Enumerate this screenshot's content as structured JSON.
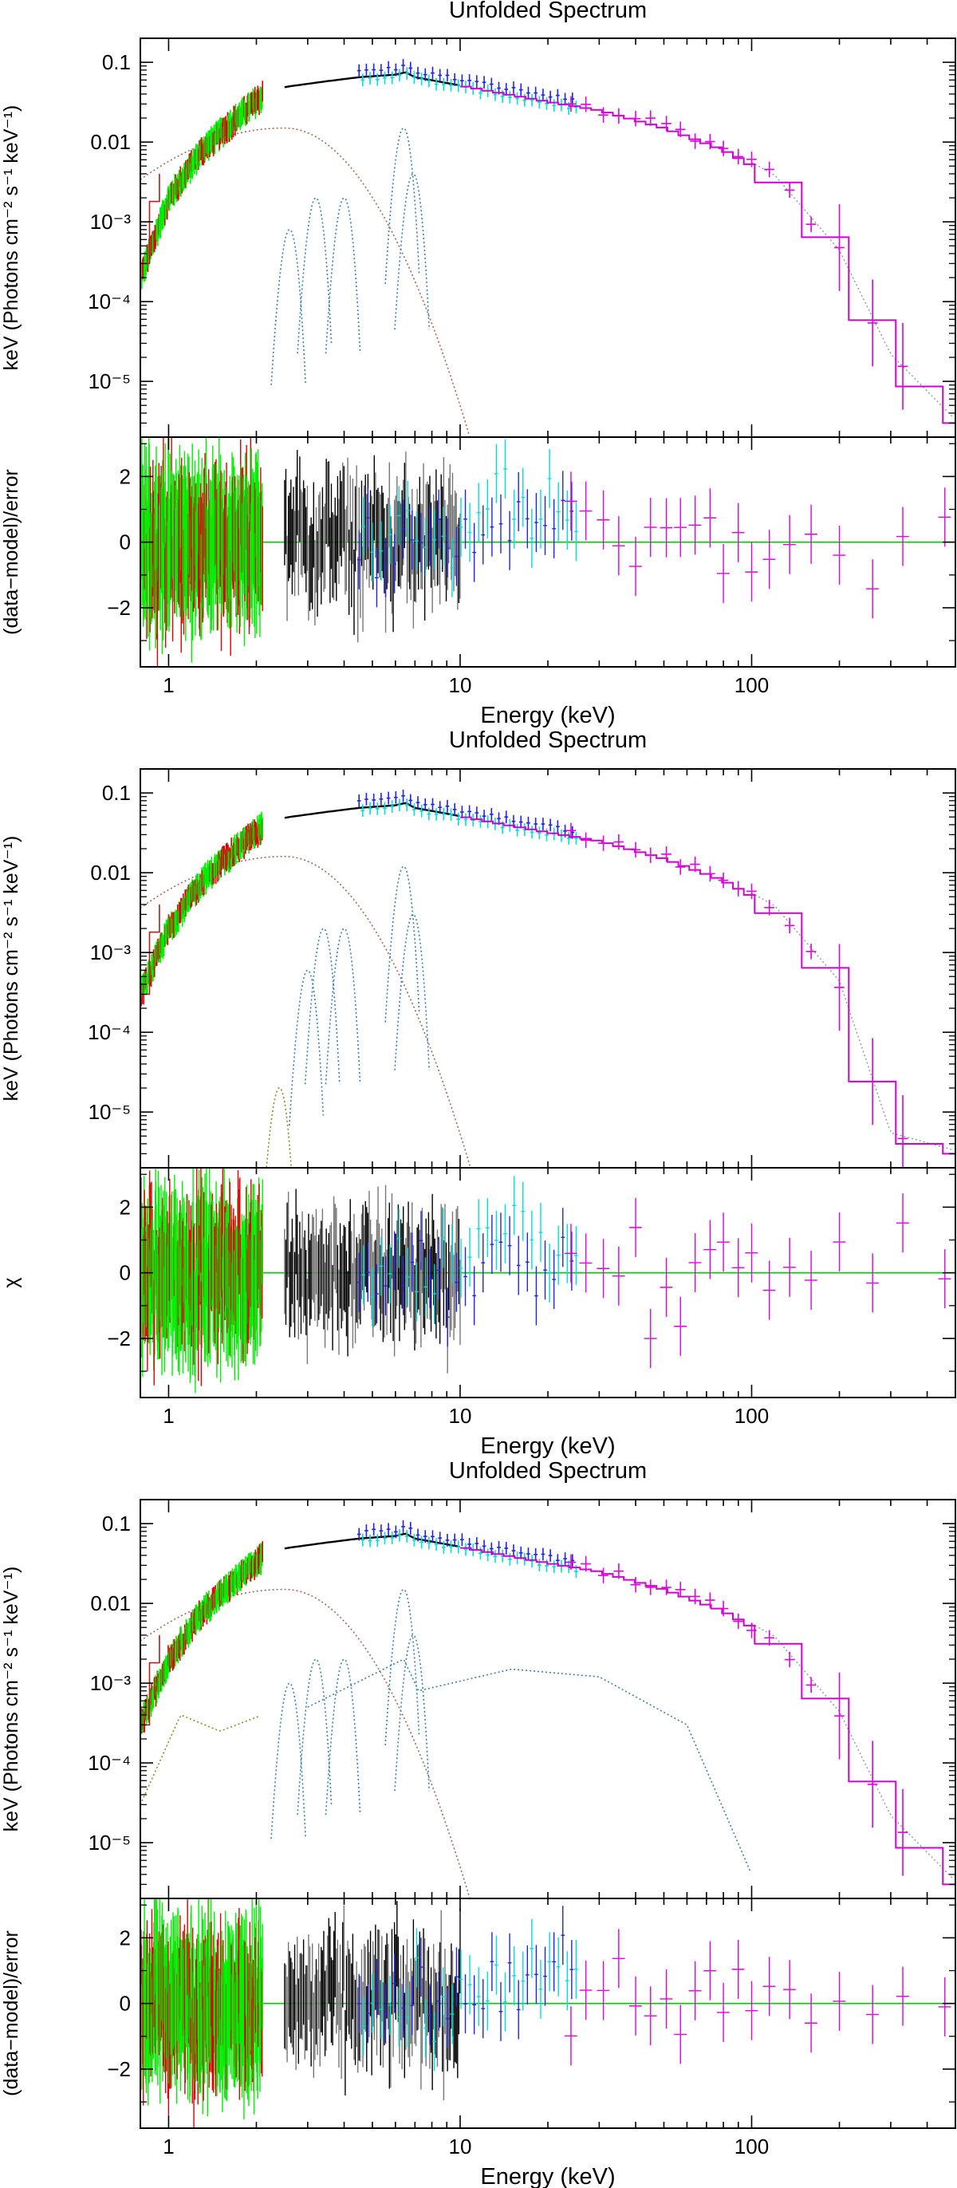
{
  "chart_data": [
    {
      "type": "line",
      "title": "Unfolded Spectrum",
      "xlabel": "Energy (keV)",
      "ylabel_top": "keV (Photons cm⁻² s⁻¹ keV⁻¹)",
      "ylabel_bottom": "(data−model)/error",
      "xscale": "log",
      "xlim": [
        0.8,
        500
      ],
      "top_ylim": [
        2e-06,
        0.2
      ],
      "bottom_ylim": [
        -3.8,
        3.2
      ],
      "x_ticks": [
        "1",
        "10",
        "100"
      ],
      "top_y_ticks": [
        "0.1",
        "0.01",
        "10⁻³",
        "10⁻⁴",
        "10⁻⁵"
      ],
      "bottom_y_ticks": [
        "2",
        "0",
        "−2"
      ],
      "model_total": {
        "x": [
          0.8,
          1,
          1.3,
          1.7,
          2.2,
          2.6,
          3.5,
          4.5,
          6,
          6.5,
          7,
          9,
          12,
          20,
          30,
          50,
          80,
          120,
          200,
          300,
          500
        ],
        "y": [
          0.0002,
          0.002,
          0.008,
          0.02,
          0.045,
          0.05,
          0.058,
          0.065,
          0.07,
          0.075,
          0.065,
          0.055,
          0.045,
          0.032,
          0.025,
          0.015,
          0.008,
          0.0035,
          0.0004,
          2e-05,
          3e-06
        ]
      },
      "components": [
        {
          "name": "continuum",
          "peak_x": 2.5,
          "peak_y": 0.015,
          "end_x": 11
        },
        {
          "name": "line",
          "center": 2.6,
          "peak": 0.0008
        },
        {
          "name": "line",
          "center": 3.2,
          "peak": 0.002
        },
        {
          "name": "line",
          "center": 4.0,
          "peak": 0.002
        },
        {
          "name": "line",
          "center": 6.4,
          "peak": 0.015
        },
        {
          "name": "line",
          "center": 6.9,
          "peak": 0.004
        }
      ],
      "series": [
        {
          "name": "soft spectrum (green/red)",
          "x_range": [
            0.8,
            2.1
          ],
          "color": "#00ee00"
        },
        {
          "name": "mid spectrum (black)",
          "x_range": [
            2.5,
            10
          ],
          "color": "#000000"
        },
        {
          "name": "spectrum (cyan)",
          "x_range": [
            4.5,
            25
          ],
          "color": "#00dddd"
        },
        {
          "name": "spectrum (blue)",
          "x_range": [
            4.5,
            25
          ],
          "color": "#2222ee"
        },
        {
          "name": "hard spectrum (magenta)",
          "x_range": [
            25,
            500
          ],
          "color": "#e000e0"
        }
      ]
    },
    {
      "type": "line",
      "title": "Unfolded Spectrum",
      "xlabel": "Energy (keV)",
      "ylabel_top": "keV (Photons cm⁻² s⁻¹ keV⁻¹)",
      "ylabel_bottom": "χ",
      "xscale": "log",
      "xlim": [
        0.8,
        500
      ],
      "top_ylim": [
        2e-06,
        0.2
      ],
      "bottom_ylim": [
        -3.8,
        3.2
      ],
      "x_ticks": [
        "1",
        "10",
        "100"
      ],
      "top_y_ticks": [
        "0.1",
        "0.01",
        "10⁻³",
        "10⁻⁴",
        "10⁻⁵"
      ],
      "bottom_y_ticks": [
        "2",
        "0",
        "−2"
      ],
      "model_total": {
        "x": [
          0.8,
          1,
          1.3,
          1.7,
          2.2,
          2.6,
          3.5,
          4.5,
          6,
          6.5,
          7,
          9,
          12,
          20,
          30,
          50,
          80,
          120,
          200,
          300,
          500
        ],
        "y": [
          0.0003,
          0.002,
          0.008,
          0.02,
          0.045,
          0.05,
          0.058,
          0.065,
          0.07,
          0.075,
          0.065,
          0.055,
          0.045,
          0.032,
          0.025,
          0.015,
          0.008,
          0.0035,
          0.0004,
          5e-06,
          3e-06
        ]
      },
      "components": [
        {
          "name": "continuum",
          "peak_x": 2.5,
          "peak_y": 0.016,
          "end_x": 13
        },
        {
          "name": "line",
          "center": 2.4,
          "peak": 2e-05
        },
        {
          "name": "line",
          "center": 3.0,
          "peak": 0.0006
        },
        {
          "name": "line",
          "center": 3.4,
          "peak": 0.002
        },
        {
          "name": "line",
          "center": 4.0,
          "peak": 0.002
        },
        {
          "name": "line",
          "center": 6.4,
          "peak": 0.012
        },
        {
          "name": "line",
          "center": 6.9,
          "peak": 0.003
        }
      ],
      "series": [
        {
          "name": "soft spectrum (green/red)",
          "x_range": [
            0.8,
            2.1
          ],
          "color": "#00ee00"
        },
        {
          "name": "mid spectrum (black)",
          "x_range": [
            2.5,
            10
          ],
          "color": "#000000"
        },
        {
          "name": "spectrum (cyan)",
          "x_range": [
            4.5,
            25
          ],
          "color": "#00dddd"
        },
        {
          "name": "spectrum (blue)",
          "x_range": [
            4.5,
            25
          ],
          "color": "#2222ee"
        },
        {
          "name": "hard spectrum (magenta)",
          "x_range": [
            25,
            500
          ],
          "color": "#e000e0"
        }
      ]
    },
    {
      "type": "line",
      "title": "Unfolded Spectrum",
      "xlabel": "Energy (keV)",
      "ylabel_top": "keV (Photons cm⁻² s⁻¹ keV⁻¹)",
      "ylabel_bottom": "(data−model)/error",
      "xscale": "log",
      "xlim": [
        0.8,
        500
      ],
      "top_ylim": [
        2e-06,
        0.2
      ],
      "bottom_ylim": [
        -3.8,
        3.2
      ],
      "x_ticks": [
        "1",
        "10",
        "100"
      ],
      "top_y_ticks": [
        "0.1",
        "0.01",
        "10⁻³",
        "10⁻⁴",
        "10⁻⁵"
      ],
      "bottom_y_ticks": [
        "2",
        "0",
        "−2"
      ],
      "model_total": {
        "x": [
          0.8,
          1,
          1.3,
          1.7,
          2.2,
          2.6,
          3.5,
          4.5,
          6,
          6.5,
          7,
          9,
          12,
          20,
          30,
          50,
          80,
          120,
          200,
          300,
          500
        ],
        "y": [
          0.0003,
          0.002,
          0.008,
          0.02,
          0.045,
          0.05,
          0.058,
          0.065,
          0.07,
          0.075,
          0.065,
          0.055,
          0.045,
          0.032,
          0.025,
          0.015,
          0.008,
          0.0035,
          0.0004,
          2e-05,
          3e-06
        ]
      },
      "components": [
        {
          "name": "continuum",
          "peak_x": 2.5,
          "peak_y": 0.015,
          "end_x": 11
        },
        {
          "name": "soft-bump",
          "x": [
            0.8,
            1.1,
            1.5,
            2.1
          ],
          "y": [
            3e-05,
            0.0004,
            0.00025,
            0.0004
          ]
        },
        {
          "name": "reflection",
          "x": [
            3,
            6.4,
            7.2,
            15,
            30,
            60,
            100
          ],
          "y": [
            0.0005,
            0.002,
            0.0008,
            0.0015,
            0.0012,
            0.0003,
            4e-06
          ]
        },
        {
          "name": "line",
          "center": 2.6,
          "peak": 0.001
        },
        {
          "name": "line",
          "center": 3.2,
          "peak": 0.002
        },
        {
          "name": "line",
          "center": 4.0,
          "peak": 0.002
        },
        {
          "name": "line",
          "center": 6.4,
          "peak": 0.015
        },
        {
          "name": "line",
          "center": 6.9,
          "peak": 0.004
        }
      ],
      "series": [
        {
          "name": "soft spectrum (green/red)",
          "x_range": [
            0.8,
            2.1
          ],
          "color": "#00ee00"
        },
        {
          "name": "mid spectrum (black)",
          "x_range": [
            2.5,
            10
          ],
          "color": "#000000"
        },
        {
          "name": "spectrum (cyan)",
          "x_range": [
            4.5,
            25
          ],
          "color": "#00dddd"
        },
        {
          "name": "spectrum (blue)",
          "x_range": [
            4.5,
            25
          ],
          "color": "#2222ee"
        },
        {
          "name": "hard spectrum (magenta)",
          "x_range": [
            25,
            500
          ],
          "color": "#e000e0"
        }
      ]
    }
  ]
}
